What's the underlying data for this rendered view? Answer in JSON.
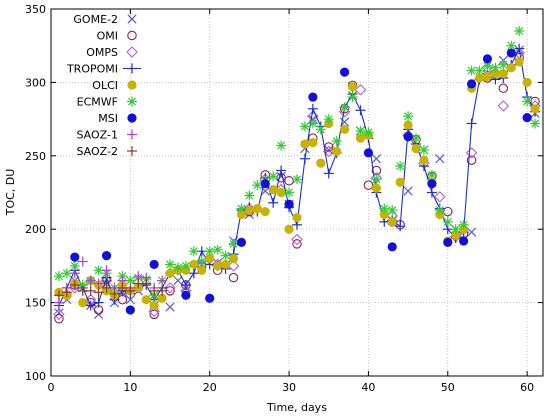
{
  "chart_data": {
    "type": "scatter",
    "xlabel": "Time, days",
    "ylabel": "TOC, DU",
    "xlim": [
      0,
      62
    ],
    "ylim": [
      100,
      350
    ],
    "xticks": [
      0,
      10,
      20,
      30,
      40,
      50,
      60
    ],
    "yticks": [
      100,
      150,
      200,
      250,
      300,
      350
    ],
    "grid": true,
    "legend_position": "top-left",
    "series": [
      {
        "name": "GOME-2",
        "marker": "x",
        "color": "#5b5bd6",
        "x": [
          1,
          2,
          3,
          4,
          5,
          6,
          7,
          8,
          9,
          10,
          11,
          13,
          15,
          16,
          17,
          19,
          21,
          23,
          25,
          27,
          29,
          30,
          32,
          33,
          35,
          37,
          38,
          39,
          41,
          43,
          45,
          47,
          49,
          51,
          53,
          55,
          57,
          59,
          61
        ],
        "y": [
          143,
          152,
          165,
          160,
          148,
          142,
          163,
          150,
          157,
          152,
          158,
          148,
          147,
          165,
          160,
          176,
          177,
          192,
          210,
          226,
          236,
          217,
          255,
          275,
          254,
          273,
          291,
          267,
          248,
          206,
          226,
          254,
          248,
          200,
          198,
          305,
          315,
          322,
          279
        ]
      },
      {
        "name": "OMI",
        "marker": "circle-open",
        "color": "#8b2252",
        "x": [
          1,
          2,
          3,
          5,
          6,
          7,
          9,
          11,
          13,
          15,
          17,
          19,
          21,
          23,
          25,
          27,
          29,
          30,
          31,
          33,
          35,
          37,
          38,
          40,
          41,
          43,
          44,
          46,
          48,
          50,
          52,
          53,
          55,
          57,
          59,
          61
        ],
        "y": [
          139,
          155,
          162,
          150,
          145,
          166,
          152,
          160,
          142,
          158,
          162,
          175,
          172,
          167,
          212,
          237,
          235,
          233,
          190,
          262,
          256,
          282,
          298,
          230,
          240,
          205,
          203,
          261,
          236,
          212,
          197,
          247,
          303,
          296,
          317,
          287
        ]
      },
      {
        "name": "OMPS",
        "marker": "diamond-open",
        "color": "#b060d0",
        "x": [
          1,
          3,
          5,
          7,
          9,
          11,
          13,
          15,
          17,
          19,
          21,
          23,
          25,
          27,
          29,
          31,
          33,
          35,
          37,
          39,
          41,
          43,
          45,
          47,
          49,
          51,
          53,
          55,
          57,
          59,
          61
        ],
        "y": [
          142,
          160,
          152,
          165,
          158,
          164,
          144,
          160,
          158,
          176,
          176,
          175,
          214,
          234,
          227,
          193,
          277,
          253,
          280,
          295,
          235,
          209,
          264,
          245,
          222,
          195,
          252,
          310,
          284,
          320,
          284
        ]
      },
      {
        "name": "TROPOMI",
        "marker": "plus-line",
        "color": "#1f2fc8",
        "x": [
          1,
          2,
          3,
          4,
          5,
          6,
          7,
          8,
          9,
          10,
          11,
          12,
          13,
          14,
          15,
          16,
          17,
          18,
          19,
          20,
          21,
          22,
          23,
          24,
          25,
          26,
          27,
          28,
          29,
          30,
          31,
          32,
          33,
          34,
          35,
          36,
          37,
          38,
          39,
          40,
          41,
          42,
          43,
          44,
          45,
          46,
          47,
          48,
          49,
          50,
          51,
          52,
          53,
          54,
          55,
          56,
          57,
          58,
          59,
          60,
          61
        ],
        "y": [
          148,
          160,
          172,
          160,
          148,
          150,
          167,
          152,
          158,
          156,
          160,
          162,
          152,
          160,
          170,
          172,
          162,
          170,
          185,
          176,
          175,
          173,
          183,
          213,
          215,
          212,
          235,
          218,
          240,
          215,
          203,
          248,
          282,
          270,
          238,
          252,
          283,
          292,
          281,
          262,
          225,
          205,
          206,
          202,
          268,
          258,
          243,
          225,
          214,
          200,
          194,
          198,
          272,
          302,
          306,
          302,
          303,
          312,
          323,
          290,
          280
        ]
      },
      {
        "name": "OLCI",
        "marker": "circle-filled",
        "color": "#c8b400",
        "x": [
          1,
          2,
          3,
          4,
          5,
          6,
          7,
          8,
          9,
          10,
          11,
          12,
          13,
          14,
          15,
          16,
          17,
          18,
          19,
          20,
          21,
          22,
          23,
          24,
          25,
          26,
          27,
          28,
          29,
          30,
          31,
          32,
          33,
          34,
          35,
          36,
          37,
          38,
          39,
          40,
          41,
          42,
          43,
          44,
          45,
          46,
          47,
          48,
          49,
          50,
          51,
          52,
          53,
          54,
          55,
          56,
          57,
          58,
          59,
          60,
          61
        ],
        "y": [
          157,
          155,
          163,
          150,
          165,
          162,
          158,
          155,
          162,
          158,
          160,
          152,
          148,
          153,
          170,
          172,
          172,
          176,
          172,
          180,
          175,
          176,
          180,
          210,
          213,
          214,
          212,
          227,
          225,
          200,
          208,
          258,
          259,
          245,
          272,
          253,
          268,
          297,
          262,
          264,
          228,
          210,
          205,
          232,
          271,
          255,
          247,
          232,
          210,
          192,
          196,
          200,
          296,
          303,
          304,
          306,
          306,
          310,
          314,
          300,
          282
        ]
      },
      {
        "name": "ECMWF",
        "marker": "asterisk",
        "color": "#33cc33",
        "x": [
          1,
          2,
          3,
          4,
          5,
          6,
          7,
          8,
          9,
          10,
          11,
          12,
          13,
          14,
          15,
          16,
          17,
          18,
          19,
          20,
          21,
          22,
          23,
          24,
          25,
          26,
          27,
          28,
          29,
          30,
          31,
          32,
          33,
          34,
          35,
          36,
          37,
          38,
          39,
          40,
          41,
          42,
          43,
          44,
          45,
          46,
          47,
          48,
          49,
          50,
          51,
          52,
          53,
          54,
          55,
          56,
          57,
          58,
          59,
          60,
          61
        ],
        "y": [
          168,
          170,
          175,
          162,
          165,
          172,
          170,
          160,
          168,
          165,
          167,
          166,
          155,
          165,
          176,
          174,
          175,
          185,
          178,
          185,
          186,
          182,
          190,
          214,
          223,
          230,
          233,
          236,
          257,
          225,
          234,
          270,
          272,
          268,
          275,
          260,
          283,
          290,
          267,
          266,
          234,
          214,
          213,
          243,
          277,
          262,
          254,
          237,
          213,
          205,
          200,
          203,
          308,
          308,
          311,
          310,
          312,
          325,
          335,
          287,
          272
        ]
      },
      {
        "name": "MSI",
        "marker": "circle-filled",
        "color": "#1010d8",
        "x": [
          3,
          7,
          10,
          13,
          17,
          20,
          24,
          27,
          30,
          33,
          37,
          40,
          43,
          45,
          48,
          50,
          52,
          53,
          55,
          58,
          60
        ],
        "y": [
          181,
          182,
          145,
          176,
          155,
          153,
          191,
          231,
          217,
          290,
          307,
          252,
          188,
          263,
          231,
          191,
          192,
          299,
          316,
          320,
          276
        ]
      },
      {
        "name": "SAOZ-1",
        "marker": "plus",
        "color": "#b040d0",
        "x": [
          1,
          2,
          3,
          4,
          5,
          6,
          7,
          8,
          9,
          10,
          11,
          12,
          13,
          14
        ],
        "y": [
          150,
          160,
          170,
          178,
          165,
          163,
          172,
          160,
          165,
          160,
          168,
          167,
          160,
          165
        ]
      },
      {
        "name": "SAOZ-2",
        "marker": "plus",
        "color": "#8b3a2a",
        "x": [
          1,
          2,
          3,
          4,
          5,
          6,
          7,
          8,
          9,
          10,
          11,
          12,
          13,
          14
        ],
        "y": [
          155,
          157,
          162,
          158,
          158,
          157,
          160,
          156,
          160,
          158,
          163,
          163,
          158,
          158
        ]
      }
    ]
  }
}
